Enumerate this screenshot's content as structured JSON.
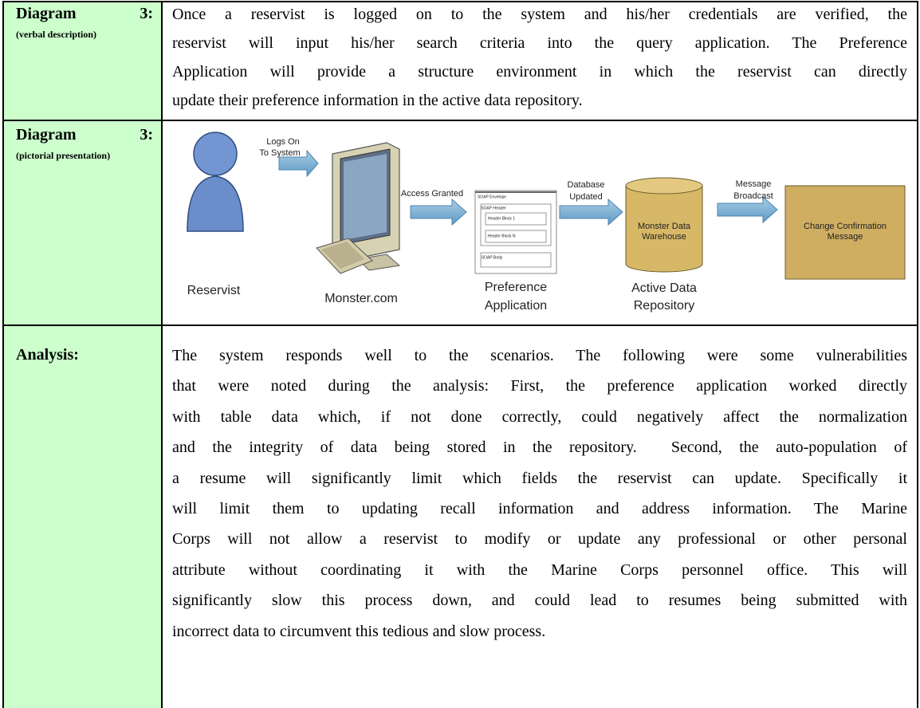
{
  "rows": [
    {
      "label": {
        "title": "Diagram",
        "number": "3:",
        "note": "(verbal description)"
      },
      "lines": [
        "Once a reservist is logged on to the system and his/her credentials are verified, the",
        "reservist will input his/her search criteria into the query application. The Preference",
        "Application will provide a structure environment in which the reservist can directly",
        "update their preference information in the active data repository."
      ]
    },
    {
      "label": {
        "title": "Diagram",
        "number": "3:",
        "note": "(pictorial presentation)"
      },
      "diagram": {
        "nodes": [
          {
            "label": [
              "Reservist"
            ]
          },
          {
            "label": [
              "Monster.com"
            ]
          },
          {
            "label": [
              "Preference",
              "Application"
            ],
            "inner": [
              "SOAP Envelope",
              "SOAP Header",
              "Header Block 1",
              "Header Block N",
              "SOAP Body"
            ]
          },
          {
            "label": [
              "Active Data",
              "Repository"
            ],
            "inner": [
              "Monster Data",
              "Warehouse"
            ]
          },
          {
            "inner": [
              "Change Confirmation",
              "Message"
            ]
          }
        ],
        "arrows": [
          {
            "label": [
              "Logs On",
              "To System"
            ]
          },
          {
            "label": [
              "Access Granted"
            ]
          },
          {
            "label": [
              "Database",
              "Updated"
            ]
          },
          {
            "label": [
              "Message",
              "Broadcast"
            ]
          }
        ]
      }
    },
    {
      "label": {
        "title": "Analysis:"
      },
      "lines": [
        "The system responds well to the scenarios. The following were some vulnerabilities",
        "that were noted during the analysis: First, the preference application worked directly",
        "with table data which, if not done correctly, could negatively affect the normalization",
        "and the integrity of data being stored in the repository.  Second, the auto-population of",
        "a resume will significantly limit which fields the reservist can update. Specifically it",
        "will limit them to updating recall information and address information. The Marine",
        "Corps will not allow a reservist to modify or update any professional or other personal",
        "attribute without coordinating it with the Marine Corps personnel office. This will",
        "significantly slow this process down, and could lead to resumes being submitted with",
        "incorrect data to circumvent this tedious and slow process."
      ]
    }
  ]
}
